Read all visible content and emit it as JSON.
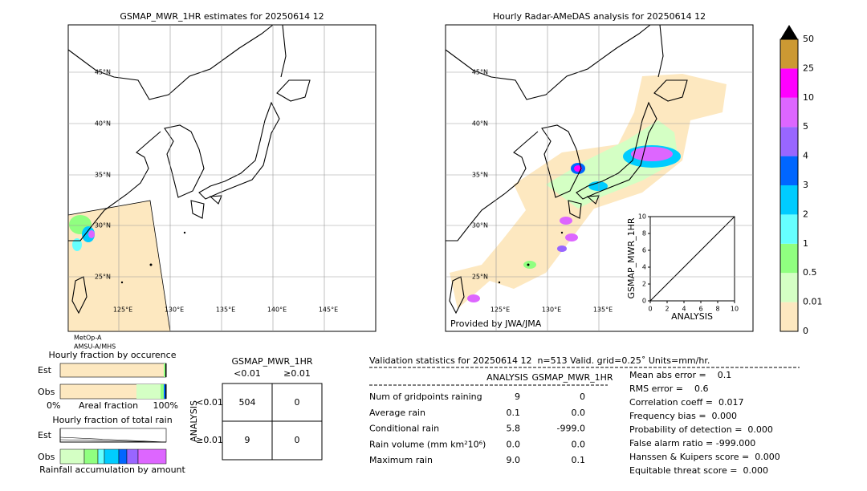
{
  "left_map": {
    "title": "GSMAP_MWR_1HR estimates for 20250614 12",
    "lat_labels": [
      "45°N",
      "40°N",
      "35°N",
      "30°N",
      "25°N"
    ],
    "lon_labels": [
      "125°E",
      "130°E",
      "135°E",
      "140°E",
      "145°E"
    ],
    "satellite": [
      "MetOp-A",
      "AMSU-A/MHS"
    ]
  },
  "right_map": {
    "title": "Hourly Radar-AMeDAS analysis for 20250614 12",
    "lat_labels": [
      "45°N",
      "40°N",
      "35°N",
      "30°N",
      "25°N"
    ],
    "lon_labels": [
      "125°E",
      "130°E",
      "135°E"
    ],
    "credit": "Provided by JWA/JMA"
  },
  "inset": {
    "y_label": "GSMAP_MWR_1HR",
    "x_label": "ANALYSIS",
    "xlim": [
      0,
      10
    ],
    "ylim": [
      0,
      10
    ],
    "xticks": [
      0,
      2,
      4,
      6,
      8,
      10
    ],
    "yticks": [
      0,
      2,
      4,
      6,
      8,
      10
    ]
  },
  "colorbar": {
    "labels": [
      "0",
      "0.01",
      "0.5",
      "1",
      "2",
      "3",
      "4",
      "5",
      "10",
      "25",
      "50"
    ],
    "colors": [
      "#fde8c0",
      "#d4ffc4",
      "#90ff80",
      "#66ffff",
      "#00ccff",
      "#0066ff",
      "#9966ff",
      "#dd66ff",
      "#ff00ff",
      "#cc9933"
    ]
  },
  "occurrence": {
    "title": "Hourly fraction by occurence",
    "rows": [
      "Est",
      "Obs"
    ],
    "axis": [
      "0%",
      "Areal fraction",
      "100%"
    ]
  },
  "total_rain": {
    "title": "Hourly fraction of total rain",
    "rows": [
      "Est",
      "Obs"
    ],
    "caption": "Rainfall accumulation by amount"
  },
  "contingency": {
    "title": "GSMAP_MWR_1HR",
    "columns": [
      "<0.01",
      "≥0.01"
    ],
    "row_title": "ANALYSIS",
    "rows": [
      "<0.01",
      "≥0.01"
    ],
    "cells": [
      [
        "504",
        "0"
      ],
      [
        "9",
        "0"
      ]
    ]
  },
  "validation": {
    "header": "Validation statistics for 20250614 12  n=513 Valid. grid=0.25˚ Units=mm/hr.",
    "columns": [
      "ANALYSIS",
      "GSMAP_MWR_1HR"
    ],
    "rows": [
      [
        "Num of gridpoints raining",
        "9",
        "0"
      ],
      [
        "Average rain",
        "0.1",
        "0.0"
      ],
      [
        "Conditional rain",
        "5.8",
        "-999.0"
      ],
      [
        "Rain volume (mm km²10⁶)",
        "0.0",
        "0.0"
      ],
      [
        "Maximum rain",
        "9.0",
        "0.1"
      ]
    ],
    "scores": [
      "Mean abs error =    0.1",
      "RMS error =    0.6",
      "Correlation coeff =  0.017",
      "Frequency bias =  0.000",
      "Probability of detection =  0.000",
      "False alarm ratio = -999.000",
      "Hanssen & Kuipers score =  0.000",
      "Equitable threat score =  0.000"
    ]
  }
}
